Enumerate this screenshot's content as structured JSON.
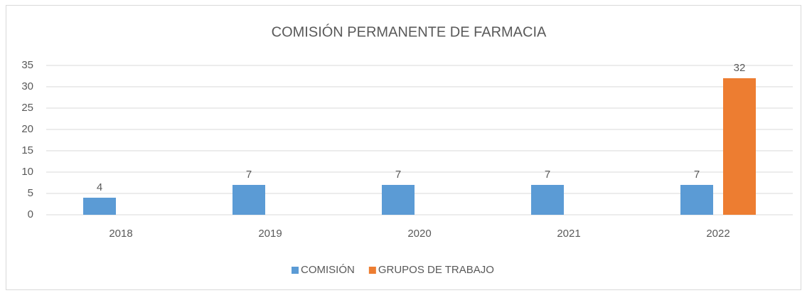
{
  "chart_data": {
    "type": "bar",
    "title": "COMISIÓN PERMANENTE DE FARMACIA",
    "categories": [
      "2018",
      "2019",
      "2020",
      "2021",
      "2022"
    ],
    "series": [
      {
        "name": "COMISIÓN",
        "color": "#5b9bd5",
        "values": [
          4,
          7,
          7,
          7,
          7
        ]
      },
      {
        "name": "GRUPOS DE TRABAJO",
        "color": "#ed7d31",
        "values": [
          null,
          null,
          null,
          null,
          32
        ]
      }
    ],
    "ylim": [
      0,
      35
    ],
    "yticks": [
      0,
      5,
      10,
      15,
      20,
      25,
      30,
      35
    ],
    "grid": true,
    "legend": "bottom"
  }
}
